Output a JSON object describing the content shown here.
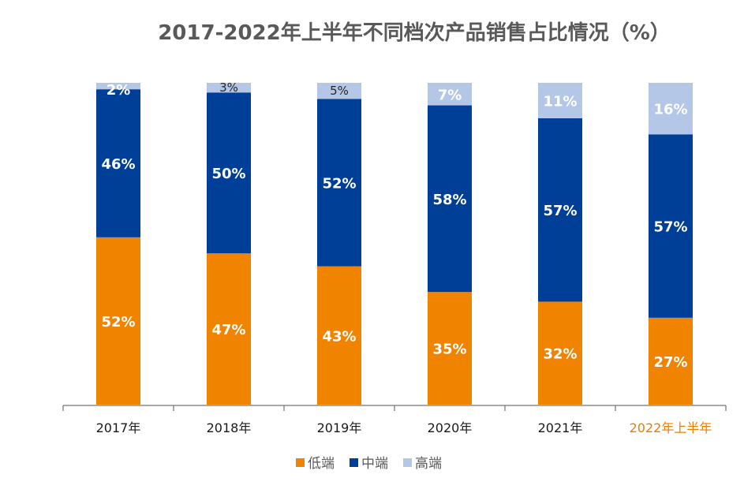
{
  "chart_data": {
    "type": "bar",
    "stacked": true,
    "title": "2017-2022年上半年不同档次产品销售占比情况（%）",
    "xlabel": "",
    "ylabel": "",
    "ylim": [
      0,
      100
    ],
    "grid": false,
    "legend_position": "bottom",
    "categories": [
      "2017年",
      "2018年",
      "2019年",
      "2020年",
      "2021年",
      "2022年上半年"
    ],
    "highlight_category_color": "#ED7D00",
    "series": [
      {
        "name": "低端",
        "color": "#F08300",
        "values": [
          52,
          47,
          43,
          35,
          32,
          27
        ],
        "labels": [
          "52%",
          "47%",
          "43%",
          "35%",
          "32%",
          "27%"
        ]
      },
      {
        "name": "中端",
        "color": "#003F98",
        "values": [
          46,
          50,
          52,
          58,
          57,
          57
        ],
        "labels": [
          "46%",
          "50%",
          "52%",
          "58%",
          "57%",
          "57%"
        ]
      },
      {
        "name": "高端",
        "color": "#B4C7E7",
        "values": [
          2,
          3,
          5,
          7,
          11,
          16
        ],
        "labels": [
          "2%",
          "3%",
          "5%",
          "7%",
          "11%",
          "16%"
        ]
      }
    ]
  }
}
